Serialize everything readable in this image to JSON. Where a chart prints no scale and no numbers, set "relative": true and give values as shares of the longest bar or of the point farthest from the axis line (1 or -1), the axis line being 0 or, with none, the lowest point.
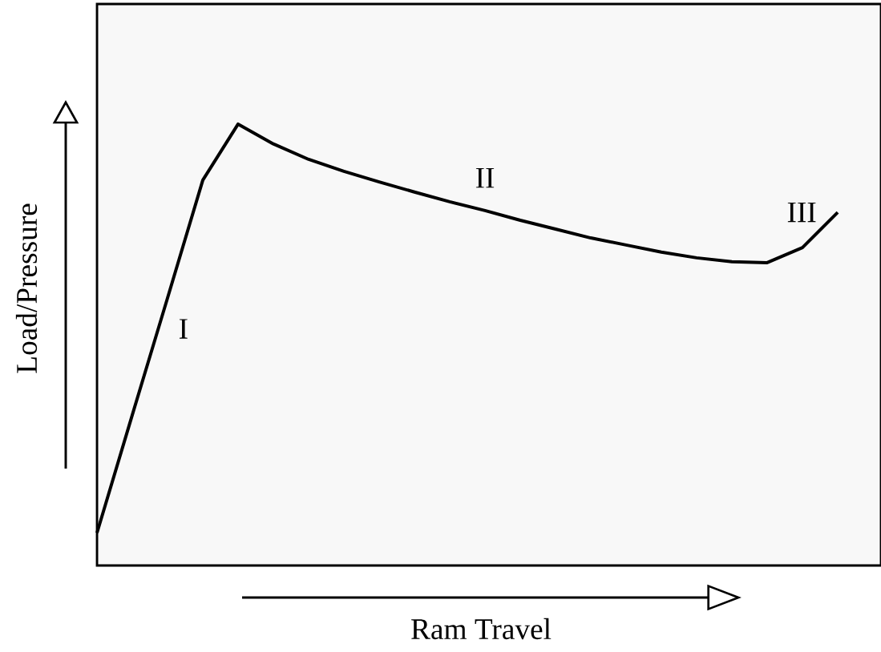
{
  "chart_data": {
    "type": "line",
    "relative": true,
    "xlabel": "Ram Travel",
    "ylabel": "Load/Pressure",
    "annotations": [
      "I",
      "II",
      "III"
    ],
    "marker": "none",
    "line_style": "solid",
    "categories": [
      null,
      null,
      null,
      null,
      null,
      null,
      null,
      null,
      null,
      null,
      null,
      null,
      null,
      null,
      null,
      null,
      null,
      null,
      null,
      null,
      null,
      null
    ],
    "series": [
      {
        "color": "#000000",
        "values": [
          0.074,
          0.341,
          0.606,
          0.873,
          1.0,
          0.955,
          0.92,
          0.893,
          0.869,
          0.846,
          0.824,
          0.804,
          0.782,
          0.762,
          0.742,
          0.726,
          0.71,
          0.697,
          0.688,
          0.686,
          0.72,
          0.8
        ]
      }
    ]
  }
}
